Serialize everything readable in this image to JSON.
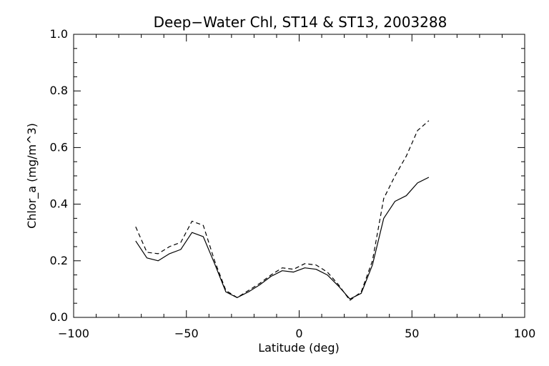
{
  "chart_data": {
    "type": "line",
    "title": "Deep−Water Chl, ST14 & ST13, 2003288",
    "xlabel": "Latitude (deg)",
    "ylabel": "Chlor_a (mg/m^3)",
    "xlim": [
      -100,
      100
    ],
    "ylim": [
      0.0,
      1.0
    ],
    "x_ticks": [
      -100,
      -50,
      0,
      50,
      100
    ],
    "x_tick_labels": [
      "−100",
      "−50",
      "0",
      "50",
      "100"
    ],
    "y_ticks": [
      0.0,
      0.2,
      0.4,
      0.6,
      0.8,
      1.0
    ],
    "y_tick_labels": [
      "0.0",
      "0.2",
      "0.4",
      "0.6",
      "0.8",
      "1.0"
    ],
    "x_minor_step": 10,
    "y_minor_step": 0.05,
    "grid": false,
    "legend": "none",
    "series": [
      {
        "style": "solid",
        "color": "#000000",
        "x": [
          -72.5,
          -67.5,
          -62.5,
          -57.5,
          -52.5,
          -47.5,
          -42.5,
          -37.5,
          -32.5,
          -27.5,
          -22.5,
          -17.5,
          -12.5,
          -7.5,
          -2.5,
          2.5,
          7.5,
          12.5,
          17.5,
          22.5,
          27.5,
          32.5,
          37.5,
          42.5,
          47.5,
          52.5,
          57.5
        ],
        "y": [
          0.27,
          0.21,
          0.2,
          0.225,
          0.24,
          0.3,
          0.285,
          0.19,
          0.09,
          0.07,
          0.09,
          0.115,
          0.145,
          0.165,
          0.16,
          0.175,
          0.17,
          0.15,
          0.11,
          0.065,
          0.085,
          0.185,
          0.35,
          0.41,
          0.43,
          0.475,
          0.495
        ]
      },
      {
        "style": "dashed",
        "color": "#000000",
        "x": [
          -72.5,
          -67.5,
          -62.5,
          -57.5,
          -52.5,
          -47.5,
          -42.5,
          -37.5,
          -32.5,
          -27.5,
          -22.5,
          -17.5,
          -12.5,
          -7.5,
          -2.5,
          2.5,
          7.5,
          12.5,
          17.5,
          22.5,
          27.5,
          32.5,
          37.5,
          42.5,
          47.5,
          52.5,
          57.5
        ],
        "y": [
          0.32,
          0.23,
          0.225,
          0.25,
          0.265,
          0.34,
          0.325,
          0.2,
          0.095,
          0.07,
          0.095,
          0.12,
          0.15,
          0.175,
          0.17,
          0.19,
          0.185,
          0.16,
          0.115,
          0.06,
          0.09,
          0.2,
          0.42,
          0.5,
          0.57,
          0.66,
          0.695
        ]
      }
    ]
  }
}
